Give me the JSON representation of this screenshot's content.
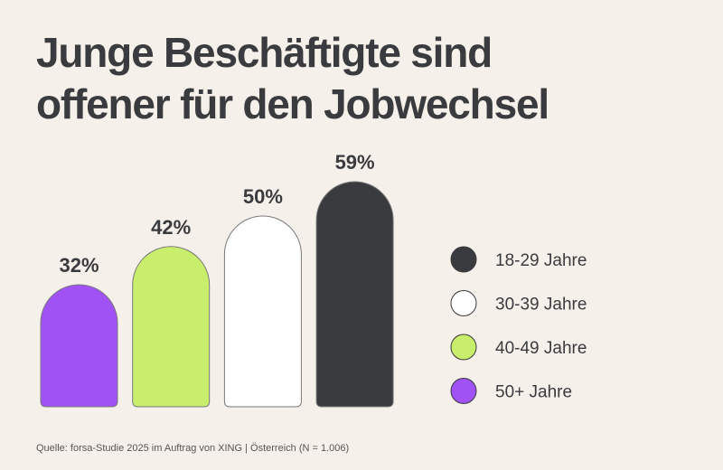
{
  "title_lines": [
    "Junge Beschäftigte sind",
    "offener für den Jobwechsel"
  ],
  "source": "Quelle: forsa-Studie 2025 im Auftrag von XING | Österreich (N = 1.006)",
  "chart_data": {
    "type": "bar",
    "title": "Junge Beschäftigte sind offener für den Jobwechsel",
    "categories": [
      "50+ Jahre",
      "40-49 Jahre",
      "30-39 Jahre",
      "18-29 Jahre"
    ],
    "values": [
      32,
      42,
      50,
      59
    ],
    "value_labels": [
      "32%",
      "42%",
      "50%",
      "59%"
    ],
    "unit": "%",
    "colors": [
      "#a052f5",
      "#c8ee6b",
      "#ffffff",
      "#3a3b3e"
    ],
    "grid": false,
    "axes_visible": false,
    "legend_position": "right",
    "legend": [
      {
        "label": "18-29 Jahre",
        "color": "#3a3b3e"
      },
      {
        "label": "30-39 Jahre",
        "color": "#ffffff"
      },
      {
        "label": "40-49 Jahre",
        "color": "#c8ee6b"
      },
      {
        "label": "50+ Jahre",
        "color": "#a052f5"
      }
    ]
  }
}
